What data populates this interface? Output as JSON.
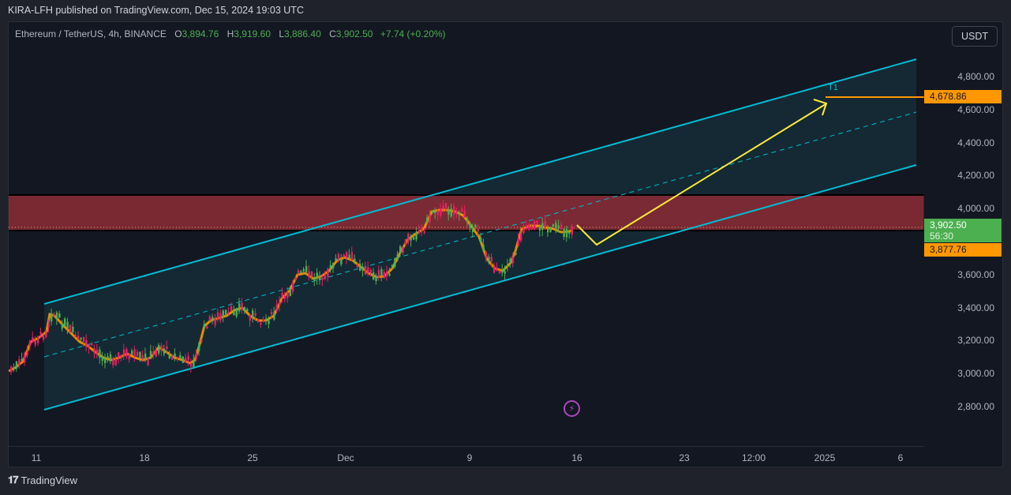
{
  "header": {
    "published": "KIRA-LFH published on TradingView.com, Dec 15, 2024 19:03 UTC"
  },
  "legend": {
    "symbol": "Ethereum / TetherUS, 4h, BINANCE",
    "open_label": "O",
    "open": "3,894.76",
    "high_label": "H",
    "high": "3,919.60",
    "low_label": "L",
    "low": "3,886.40",
    "close_label": "C",
    "close": "3,902.50",
    "change": "+7.74 (+0.20%)"
  },
  "currency_button": "USDT",
  "price_axis": {
    "labels": [
      "4,800.00",
      "4,600.00",
      "4,400.00",
      "4,200.00",
      "4,000.00",
      "3,600.00",
      "3,400.00",
      "3,200.00",
      "3,000.00",
      "2,800.00"
    ],
    "target_tag": "4,678.86",
    "last_price": "3,902.50",
    "countdown": "56:30",
    "ma_tag": "3,877.76"
  },
  "time_axis": {
    "labels": [
      "11",
      "18",
      "25",
      "Dec",
      "9",
      "16",
      "23",
      "12:00",
      "2025",
      "6"
    ]
  },
  "drawings": {
    "target_label": "T1",
    "bolt_icon": "lightning-icon"
  },
  "footer": {
    "brand": "TradingView",
    "logo": "TV-logo"
  },
  "colors": {
    "up": "#4caf50",
    "down": "#e91e63",
    "channel": "#00bcd4",
    "zone": "#7f2a35",
    "projection": "#ffeb3b",
    "target": "#ff9800",
    "ma": "#ff9800",
    "bg": "#131722"
  },
  "chart_data": {
    "type": "candlestick",
    "title": "Ethereum / TetherUS, 4h, BINANCE",
    "ylim": [
      2700,
      4950
    ],
    "ylabel": "USDT",
    "x_ticks": [
      "11",
      "18",
      "25",
      "Dec",
      "9",
      "16",
      "23",
      "12:00",
      "2025",
      "6"
    ],
    "last": {
      "open": 3894.76,
      "high": 3919.6,
      "low": 3886.4,
      "close": 3902.5,
      "change": 7.74,
      "change_pct": 0.2
    },
    "approx_path": [
      {
        "date": "Nov 10",
        "close": 3050
      },
      {
        "date": "Nov 11",
        "close": 3200
      },
      {
        "date": "Nov 12",
        "close": 3350
      },
      {
        "date": "Nov 14",
        "close": 3150
      },
      {
        "date": "Nov 16",
        "close": 3080
      },
      {
        "date": "Nov 18",
        "close": 3150
      },
      {
        "date": "Nov 20",
        "close": 3080
      },
      {
        "date": "Nov 21",
        "close": 3100
      },
      {
        "date": "Nov 22",
        "close": 3350
      },
      {
        "date": "Nov 24",
        "close": 3380
      },
      {
        "date": "Nov 26",
        "close": 3350
      },
      {
        "date": "Nov 27",
        "close": 3600
      },
      {
        "date": "Nov 29",
        "close": 3580
      },
      {
        "date": "Dec 1",
        "close": 3700
      },
      {
        "date": "Dec 3",
        "close": 3620
      },
      {
        "date": "Dec 5",
        "close": 3850
      },
      {
        "date": "Dec 6",
        "close": 4000
      },
      {
        "date": "Dec 8",
        "close": 3980
      },
      {
        "date": "Dec 9",
        "close": 3750
      },
      {
        "date": "Dec 10",
        "close": 3600
      },
      {
        "date": "Dec 11",
        "close": 3800
      },
      {
        "date": "Dec 12",
        "close": 3950
      },
      {
        "date": "Dec 14",
        "close": 3900
      },
      {
        "date": "Dec 15",
        "close": 3902.5
      }
    ],
    "annotations": {
      "resistance_zone": [
        3900,
        4080
      ],
      "channel_upper": [
        {
          "x": "Nov 11",
          "y": 3420
        },
        {
          "x": "Jan 7",
          "y": 4900
        }
      ],
      "channel_lower": [
        {
          "x": "Nov 11",
          "y": 2780
        },
        {
          "x": "Jan 7",
          "y": 4260
        }
      ],
      "channel_mid": [
        {
          "x": "Nov 11",
          "y": 3100
        },
        {
          "x": "Jan 7",
          "y": 4580
        }
      ],
      "projection": [
        {
          "x": "Dec 15",
          "y": 3890
        },
        {
          "x": "Dec 17",
          "y": 3780
        },
        {
          "x": "Jan 1",
          "y": 4650
        }
      ],
      "target_T1": 4678.86,
      "ma_value": 3877.76
    }
  }
}
